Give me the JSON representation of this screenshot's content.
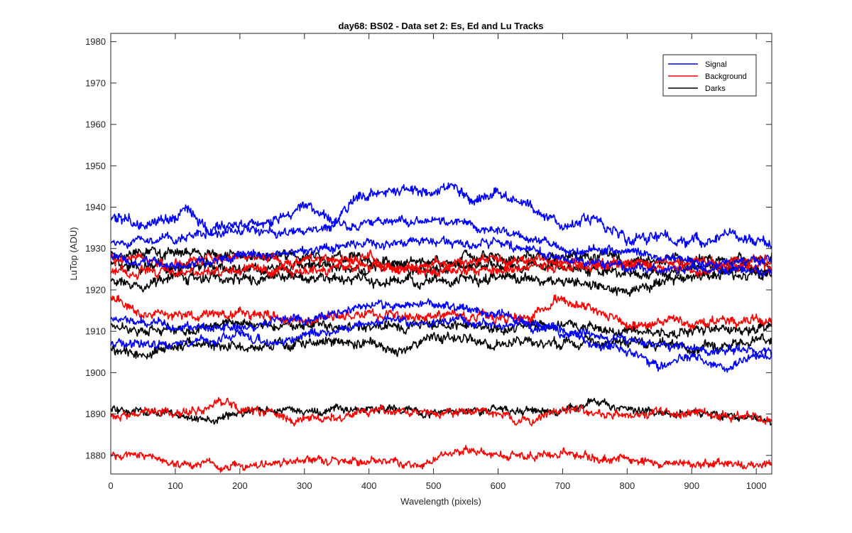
{
  "chart_data": {
    "type": "line",
    "title": "day68: BS02 - Data set 2: Es, Ed and Lu Tracks",
    "xlabel": "Wavelength (pixels)",
    "ylabel": "LuTop (ADU)",
    "xlim": [
      0,
      1024
    ],
    "ylim": [
      1875.5,
      1982
    ],
    "xticks": [
      0,
      100,
      200,
      300,
      400,
      500,
      600,
      700,
      800,
      900,
      1000
    ],
    "yticks": [
      1880,
      1890,
      1900,
      1910,
      1920,
      1930,
      1940,
      1950,
      1960,
      1970,
      1980
    ],
    "grid": false,
    "legend": {
      "position": "top-right",
      "entries": [
        {
          "label": "Signal",
          "color": "#0000ff"
        },
        {
          "label": "Background",
          "color": "#ff0000"
        },
        {
          "label": "Darks",
          "color": "#000000"
        }
      ]
    },
    "series": [
      {
        "group": "Signal",
        "color": "#0000ff",
        "noise": 1.2,
        "x": [
          0,
          50,
          100,
          120,
          150,
          200,
          250,
          300,
          350,
          380,
          450,
          500,
          530,
          560,
          600,
          620,
          700,
          750,
          800,
          850,
          900,
          950,
          1024
        ],
        "y": [
          1937,
          1936,
          1937,
          1939,
          1935,
          1936,
          1936,
          1940,
          1937,
          1943,
          1944,
          1944,
          1945,
          1941,
          1944,
          1942,
          1936,
          1937,
          1932,
          1933,
          1931,
          1933,
          1931
        ]
      },
      {
        "group": "Signal",
        "color": "#0000ff",
        "noise": 1.0,
        "x": [
          0,
          100,
          200,
          300,
          400,
          500,
          550,
          600,
          700,
          800,
          900,
          1024
        ],
        "y": [
          1931,
          1933,
          1934,
          1934,
          1936,
          1937,
          1936,
          1934,
          1930,
          1929,
          1927,
          1927
        ]
      },
      {
        "group": "Signal",
        "color": "#0000ff",
        "noise": 1.0,
        "x": [
          0,
          100,
          200,
          300,
          400,
          500,
          550,
          600,
          700,
          800,
          900,
          1024
        ],
        "y": [
          1928,
          1926,
          1928,
          1929,
          1931,
          1932,
          1931,
          1931,
          1928,
          1925,
          1925,
          1924
        ]
      },
      {
        "group": "Signal",
        "color": "#0000ff",
        "noise": 1.0,
        "x": [
          0,
          100,
          200,
          300,
          400,
          500,
          600,
          650,
          700,
          800,
          900,
          1024
        ],
        "y": [
          1913,
          1911,
          1911,
          1913,
          1916,
          1917,
          1914,
          1912,
          1910,
          1908,
          1906,
          1905
        ]
      },
      {
        "group": "Signal",
        "color": "#0000ff",
        "noise": 1.0,
        "x": [
          0,
          100,
          200,
          250,
          300,
          400,
          500,
          600,
          700,
          800,
          850,
          900,
          950,
          1024
        ],
        "y": [
          1907,
          1907,
          1909,
          1907,
          1909,
          1912,
          1912,
          1912,
          1910,
          1905,
          1902,
          1904,
          1901,
          1905
        ]
      },
      {
        "group": "Background",
        "color": "#ff0000",
        "noise": 1.1,
        "x": [
          0,
          100,
          200,
          300,
          400,
          450,
          500,
          600,
          700,
          800,
          900,
          1024
        ],
        "y": [
          1928,
          1926,
          1928,
          1927,
          1928,
          1925,
          1926,
          1927,
          1927,
          1926,
          1927,
          1927
        ]
      },
      {
        "group": "Background",
        "color": "#ff0000",
        "noise": 1.1,
        "x": [
          0,
          100,
          200,
          300,
          400,
          500,
          600,
          700,
          800,
          900,
          1024
        ],
        "y": [
          1925,
          1924,
          1925,
          1924,
          1926,
          1924,
          1925,
          1926,
          1926,
          1925,
          1926
        ]
      },
      {
        "group": "Background",
        "color": "#ff0000",
        "noise": 1.1,
        "x": [
          0,
          50,
          100,
          200,
          300,
          400,
          450,
          500,
          600,
          650,
          700,
          800,
          900,
          1024
        ],
        "y": [
          1919,
          1914,
          1914,
          1914,
          1913,
          1914,
          1914,
          1914,
          1913,
          1914,
          1918,
          1912,
          1912,
          1913
        ]
      },
      {
        "group": "Background",
        "color": "#ff0000",
        "noise": 1.0,
        "x": [
          0,
          100,
          180,
          200,
          250,
          300,
          400,
          500,
          600,
          650,
          700,
          800,
          900,
          1024
        ],
        "y": [
          1890,
          1890,
          1893,
          1891,
          1890,
          1888,
          1891,
          1890,
          1891,
          1888,
          1891,
          1890,
          1890,
          1889
        ]
      },
      {
        "group": "Background",
        "color": "#ff0000",
        "noise": 0.9,
        "x": [
          0,
          50,
          100,
          150,
          200,
          300,
          400,
          480,
          520,
          600,
          700,
          800,
          850,
          900,
          1024
        ],
        "y": [
          1880,
          1880,
          1878,
          1878,
          1877,
          1879,
          1879,
          1877,
          1881,
          1880,
          1880,
          1879,
          1878,
          1878,
          1878
        ]
      },
      {
        "group": "Darks",
        "color": "#000000",
        "noise": 1.2,
        "x": [
          0,
          100,
          200,
          300,
          400,
          500,
          600,
          700,
          800,
          900,
          1024
        ],
        "y": [
          1929,
          1929,
          1928,
          1928,
          1927,
          1927,
          1928,
          1928,
          1927,
          1927,
          1928
        ]
      },
      {
        "group": "Darks",
        "color": "#000000",
        "noise": 1.2,
        "x": [
          0,
          100,
          200,
          300,
          400,
          500,
          600,
          700,
          800,
          900,
          1024
        ],
        "y": [
          1926,
          1926,
          1925,
          1926,
          1925,
          1925,
          1926,
          1926,
          1924,
          1925,
          1925
        ]
      },
      {
        "group": "Darks",
        "color": "#000000",
        "noise": 1.2,
        "x": [
          0,
          50,
          100,
          200,
          300,
          400,
          500,
          600,
          700,
          800,
          900,
          1024
        ],
        "y": [
          1922,
          1921,
          1923,
          1923,
          1923,
          1922,
          1922,
          1923,
          1922,
          1920,
          1923,
          1924
        ]
      },
      {
        "group": "Darks",
        "color": "#000000",
        "noise": 1.1,
        "x": [
          0,
          100,
          200,
          300,
          400,
          500,
          600,
          700,
          800,
          900,
          1024
        ],
        "y": [
          1911,
          1910,
          1912,
          1911,
          1911,
          1912,
          1911,
          1912,
          1910,
          1910,
          1911
        ]
      },
      {
        "group": "Darks",
        "color": "#000000",
        "noise": 1.1,
        "x": [
          0,
          50,
          100,
          200,
          300,
          400,
          450,
          500,
          600,
          700,
          800,
          900,
          1024
        ],
        "y": [
          1906,
          1904,
          1907,
          1906,
          1907,
          1907,
          1905,
          1909,
          1907,
          1907,
          1908,
          1906,
          1908
        ]
      },
      {
        "group": "Darks",
        "color": "#000000",
        "noise": 0.9,
        "x": [
          0,
          100,
          150,
          200,
          300,
          400,
          500,
          600,
          700,
          750,
          800,
          900,
          1000,
          1024
        ],
        "y": [
          1891,
          1890,
          1888,
          1891,
          1891,
          1891,
          1890,
          1891,
          1891,
          1893,
          1891,
          1890,
          1889,
          1888
        ]
      }
    ]
  }
}
